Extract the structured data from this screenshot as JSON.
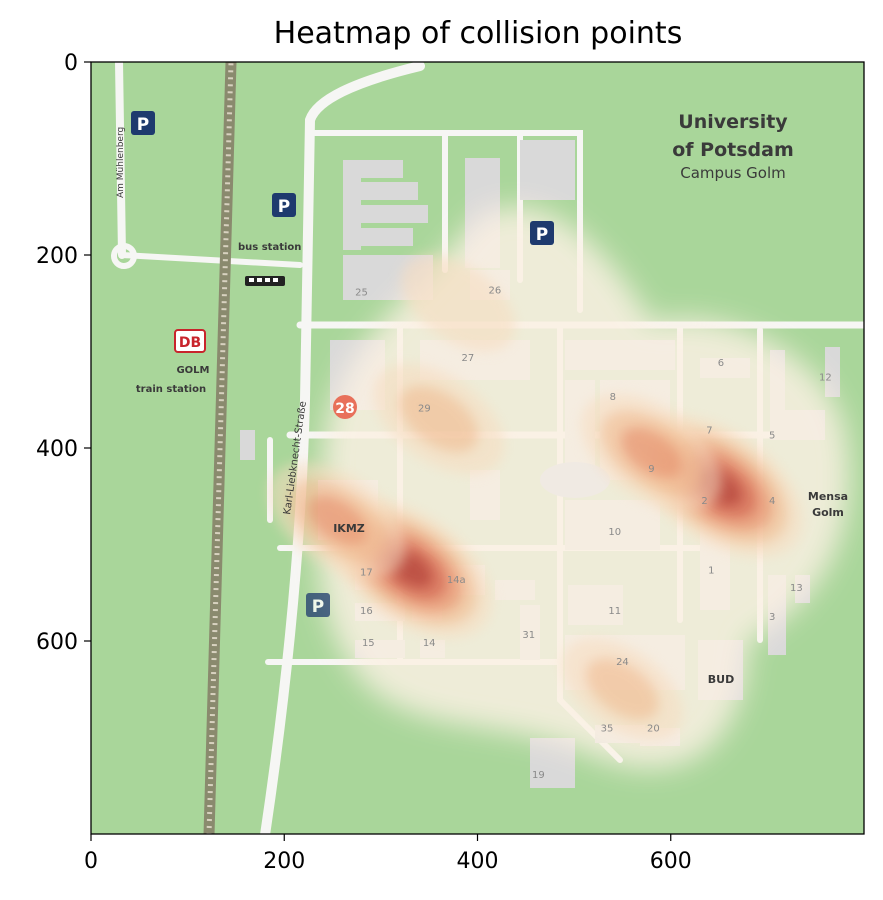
{
  "chart_data": {
    "type": "heatmap",
    "title": "Heatmap of collision points",
    "xlim": [
      0,
      800
    ],
    "ylim": [
      800,
      0
    ],
    "xticks": [
      0,
      200,
      400,
      600
    ],
    "yticks": [
      0,
      200,
      400,
      600
    ],
    "grid": false,
    "legend": "none",
    "colormap": [
      "#fbf1e3",
      "#f7dcbf",
      "#f0b98e",
      "#e58a68",
      "#cf5a4a",
      "#a8302e"
    ],
    "hotspots": [
      {
        "x": 650,
        "y": 440,
        "intensity": 1.0
      },
      {
        "x": 330,
        "y": 525,
        "intensity": 0.95
      },
      {
        "x": 580,
        "y": 405,
        "intensity": 0.6
      },
      {
        "x": 255,
        "y": 475,
        "intensity": 0.55
      },
      {
        "x": 360,
        "y": 370,
        "intensity": 0.45
      },
      {
        "x": 550,
        "y": 650,
        "intensity": 0.3
      },
      {
        "x": 380,
        "y": 250,
        "intensity": 0.2
      }
    ]
  },
  "map": {
    "title_line1": "University",
    "title_line2": "of Potsdam",
    "subtitle": "Campus Golm",
    "street_muehlenberg": "Am Mühlenberg",
    "street_liebknecht": "Karl-Liebknecht-Straße",
    "bus_station": "bus station",
    "db_logo": "DB",
    "golm": "GOLM",
    "train_station": "train station",
    "mensa_line1": "Mensa",
    "mensa_line2": "Golm",
    "parking_label": "P",
    "ikmz": "IKMZ",
    "bud": "BUD",
    "building_28": "28",
    "building_numbers": [
      {
        "n": "25",
        "x": 280,
        "y": 242
      },
      {
        "n": "26",
        "x": 418,
        "y": 240
      },
      {
        "n": "27",
        "x": 390,
        "y": 310
      },
      {
        "n": "29",
        "x": 345,
        "y": 362
      },
      {
        "n": "8",
        "x": 540,
        "y": 350
      },
      {
        "n": "6",
        "x": 652,
        "y": 315
      },
      {
        "n": "7",
        "x": 640,
        "y": 385
      },
      {
        "n": "5",
        "x": 705,
        "y": 390
      },
      {
        "n": "9",
        "x": 580,
        "y": 425
      },
      {
        "n": "2",
        "x": 635,
        "y": 458
      },
      {
        "n": "4",
        "x": 705,
        "y": 458
      },
      {
        "n": "10",
        "x": 542,
        "y": 490
      },
      {
        "n": "1",
        "x": 642,
        "y": 530
      },
      {
        "n": "12",
        "x": 760,
        "y": 330
      },
      {
        "n": "13",
        "x": 730,
        "y": 548
      },
      {
        "n": "3",
        "x": 705,
        "y": 578
      },
      {
        "n": "17",
        "x": 285,
        "y": 532
      },
      {
        "n": "14a",
        "x": 378,
        "y": 540
      },
      {
        "n": "16",
        "x": 285,
        "y": 572
      },
      {
        "n": "11",
        "x": 542,
        "y": 572
      },
      {
        "n": "31",
        "x": 453,
        "y": 597
      },
      {
        "n": "15",
        "x": 287,
        "y": 605
      },
      {
        "n": "14",
        "x": 350,
        "y": 605
      },
      {
        "n": "24",
        "x": 550,
        "y": 625
      },
      {
        "n": "35",
        "x": 534,
        "y": 694
      },
      {
        "n": "20",
        "x": 582,
        "y": 694
      },
      {
        "n": "19",
        "x": 463,
        "y": 742
      }
    ]
  }
}
